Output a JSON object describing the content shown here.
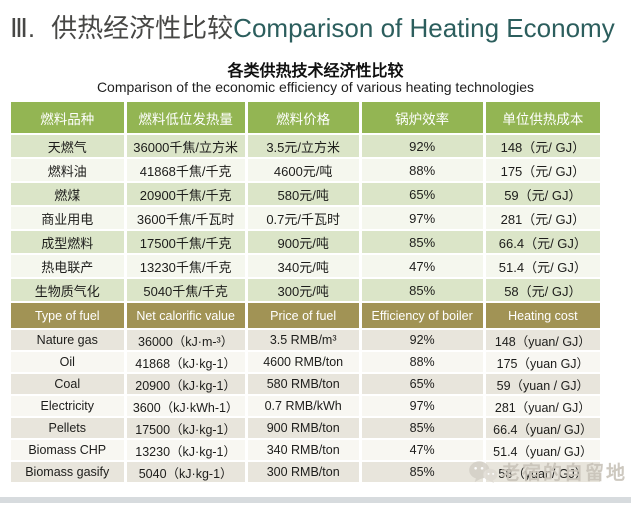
{
  "title": {
    "numeral": "Ⅲ.",
    "zh": "供热经济性比较",
    "en": "Comparison of Heating Economy"
  },
  "subtitle": {
    "zh": "各类供热技术经济性比较",
    "en": "Comparison of the economic efficiency of various heating technologies"
  },
  "table": {
    "zh_header": [
      "燃料品种",
      "燃料低位发热量",
      "燃料价格",
      "锅炉效率",
      "单位供热成本"
    ],
    "zh_rows": [
      [
        "天燃气",
        "36000千焦/立方米",
        "3.5元/立方米",
        "92%",
        "148（元/ GJ）"
      ],
      [
        "燃料油",
        "41868千焦/千克",
        "4600元/吨",
        "88%",
        "175（元/ GJ）"
      ],
      [
        "燃煤",
        "20900千焦/千克",
        "580元/吨",
        "65%",
        "59（元/ GJ）"
      ],
      [
        "商业用电",
        "3600千焦/千瓦时",
        "0.7元/千瓦时",
        "97%",
        "281（元/ GJ）"
      ],
      [
        "成型燃料",
        "17500千焦/千克",
        "900元/吨",
        "85%",
        "66.4（元/ GJ）"
      ],
      [
        "热电联产",
        "13230千焦/千克",
        "340元/吨",
        "47%",
        "51.4（元/ GJ）"
      ],
      [
        "生物质气化",
        "5040千焦/千克",
        "300元/吨",
        "85%",
        "58（元/ GJ）"
      ]
    ],
    "en_header": [
      "Type of fuel",
      "Net calorific value",
      "Price of  fuel",
      "Efficiency of  boiler",
      "Heating cost"
    ],
    "en_rows": [
      [
        "Nature gas",
        "36000（kJ·m-³）",
        "3.5 RMB/m³",
        "92%",
        "148（yuan/ GJ）"
      ],
      [
        "Oil",
        "41868（kJ·kg-1）",
        "4600 RMB/ton",
        "88%",
        "175（yuan GJ）"
      ],
      [
        "Coal",
        "20900（kJ·kg-1）",
        "580 RMB/ton",
        "65%",
        "59（yuan / GJ）"
      ],
      [
        "Electricity",
        "3600（kJ·kWh-1）",
        "0.7 RMB/kWh",
        "97%",
        "281（yuan/ GJ）"
      ],
      [
        "Pellets",
        "17500（kJ·kg-1）",
        "900 RMB/ton",
        "85%",
        "66.4（yuan/ GJ）"
      ],
      [
        "Biomass CHP",
        "13230（kJ·kg-1）",
        "340 RMB/ton",
        "47%",
        "51.4（yuan/ GJ）"
      ],
      [
        "Biomass gasify",
        "5040（kJ·kg-1）",
        "300 RMB/ton",
        "85%",
        "58（yuan/ GJ）"
      ]
    ]
  },
  "watermark": {
    "icon": "wechat-icon",
    "text": "老宿的自留地"
  },
  "colors": {
    "zh_header_bg": "#93b553",
    "en_header_bg": "#a19355",
    "zh_row_odd": "#dbe5c8",
    "zh_row_even": "#f5f7ee",
    "en_row_odd": "#e8e5dc",
    "en_row_even": "#f8f7f2",
    "title_en": "#2c5e5d",
    "title_zh": "#474745"
  }
}
